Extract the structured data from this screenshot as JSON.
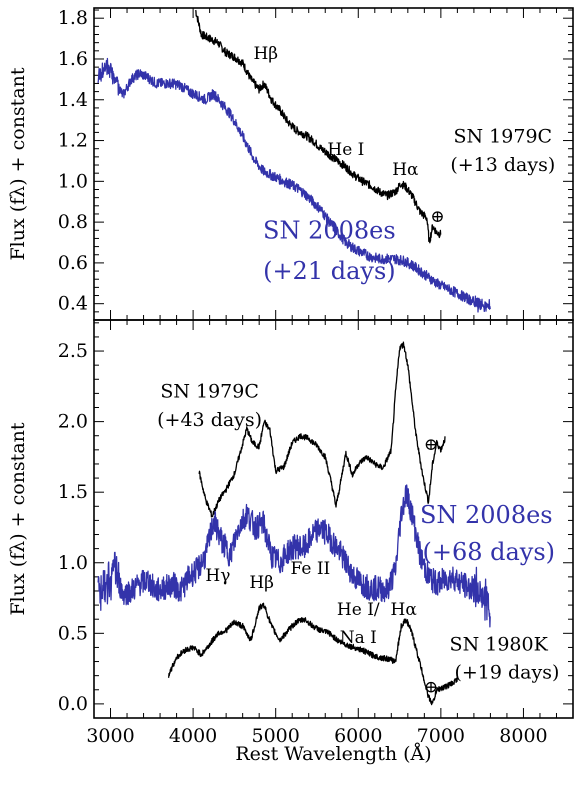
{
  "chart_data": [
    {
      "type": "line",
      "panel": "top",
      "ylabel": "Flux (fλ) + constant",
      "xlim": [
        2800,
        8600
      ],
      "ylim": [
        0.32,
        1.85
      ],
      "yticks": [
        {
          "value": 0.4,
          "label": "0.4"
        },
        {
          "value": 0.6,
          "label": "0.6"
        },
        {
          "value": 0.8,
          "label": "0.8"
        },
        {
          "value": 1.0,
          "label": "1.0"
        },
        {
          "value": 1.2,
          "label": "1.2"
        },
        {
          "value": 1.4,
          "label": "1.4"
        },
        {
          "value": 1.6,
          "label": "1.6"
        },
        {
          "value": 1.8,
          "label": "1.8"
        }
      ],
      "series": [
        {
          "name": "SN 1979C (+13 days)",
          "color": "#000000",
          "x": [
            4030,
            4100,
            4200,
            4300,
            4400,
            4500,
            4600,
            4700,
            4800,
            4860,
            4950,
            5050,
            5150,
            5250,
            5350,
            5450,
            5550,
            5650,
            5750,
            5850,
            5950,
            6050,
            6150,
            6250,
            6350,
            6450,
            6520,
            6580,
            6650,
            6750,
            6830,
            6860,
            6900,
            6950,
            7000
          ],
          "y": [
            1.84,
            1.72,
            1.7,
            1.68,
            1.63,
            1.61,
            1.58,
            1.5,
            1.45,
            1.48,
            1.4,
            1.35,
            1.29,
            1.25,
            1.23,
            1.2,
            1.16,
            1.13,
            1.1,
            1.07,
            1.03,
            1.0,
            0.98,
            0.95,
            0.93,
            0.95,
            0.99,
            0.97,
            0.93,
            0.85,
            0.82,
            0.7,
            0.78,
            0.75,
            0.74
          ]
        },
        {
          "name": "SN 2008es (+21 days)",
          "color": "#3333aa",
          "x": [
            2850,
            2950,
            3050,
            3150,
            3250,
            3350,
            3450,
            3550,
            3650,
            3750,
            3850,
            3950,
            4050,
            4150,
            4250,
            4350,
            4450,
            4550,
            4650,
            4750,
            4850,
            4950,
            5050,
            5150,
            5250,
            5350,
            5450,
            5550,
            5650,
            5750,
            5850,
            5950,
            6050,
            6150,
            6250,
            6350,
            6450,
            6550,
            6650,
            6750,
            6850,
            6950,
            7050,
            7150,
            7250,
            7350,
            7450,
            7550,
            7600
          ],
          "y": [
            1.5,
            1.57,
            1.51,
            1.42,
            1.5,
            1.53,
            1.51,
            1.48,
            1.48,
            1.48,
            1.47,
            1.44,
            1.42,
            1.4,
            1.43,
            1.38,
            1.33,
            1.26,
            1.18,
            1.1,
            1.05,
            1.03,
            1.01,
            0.99,
            0.97,
            0.94,
            0.9,
            0.86,
            0.8,
            0.75,
            0.7,
            0.67,
            0.65,
            0.63,
            0.62,
            0.62,
            0.62,
            0.61,
            0.59,
            0.56,
            0.53,
            0.5,
            0.48,
            0.46,
            0.44,
            0.42,
            0.4,
            0.38,
            0.39
          ]
        }
      ],
      "annotations": [
        {
          "text": "Hβ",
          "x": 4880,
          "y": 1.6,
          "color": "black"
        },
        {
          "text": "He I",
          "x": 5850,
          "y": 1.13,
          "color": "black"
        },
        {
          "text": "Hα",
          "x": 6570,
          "y": 1.03,
          "color": "black"
        },
        {
          "text": "⊕",
          "x": 6960,
          "y": 0.8,
          "color": "black"
        },
        {
          "text": "SN 1979C",
          "x": 7750,
          "y": 1.19,
          "color": "black"
        },
        {
          "text": "(+13 days)",
          "x": 7750,
          "y": 1.05,
          "color": "black"
        },
        {
          "text": "SN 2008es",
          "x": 5650,
          "y": 0.72,
          "color": "blue"
        },
        {
          "text": "(+21 days)",
          "x": 5650,
          "y": 0.52,
          "color": "blue"
        }
      ]
    },
    {
      "type": "line",
      "panel": "bottom",
      "xlabel": "Rest Wavelength (Å)",
      "ylabel": "Flux (fλ) + constant",
      "xlim": [
        2800,
        8600
      ],
      "ylim": [
        -0.1,
        2.72
      ],
      "xticks": [
        {
          "value": 3000,
          "label": "3000"
        },
        {
          "value": 4000,
          "label": "4000"
        },
        {
          "value": 5000,
          "label": "5000"
        },
        {
          "value": 6000,
          "label": "6000"
        },
        {
          "value": 7000,
          "label": "7000"
        },
        {
          "value": 8000,
          "label": "8000"
        }
      ],
      "yticks": [
        {
          "value": 0.0,
          "label": "0.0"
        },
        {
          "value": 0.5,
          "label": "0.5"
        },
        {
          "value": 1.0,
          "label": "1.0"
        },
        {
          "value": 1.5,
          "label": "1.5"
        },
        {
          "value": 2.0,
          "label": "2.0"
        },
        {
          "value": 2.5,
          "label": "2.5"
        }
      ],
      "series": [
        {
          "name": "SN 1979C (+43 days)",
          "color": "#000000",
          "x": [
            4070,
            4150,
            4230,
            4320,
            4400,
            4500,
            4580,
            4650,
            4720,
            4800,
            4860,
            4930,
            5000,
            5100,
            5200,
            5300,
            5400,
            5500,
            5600,
            5680,
            5730,
            5780,
            5850,
            5930,
            6000,
            6100,
            6200,
            6300,
            6400,
            6450,
            6500,
            6550,
            6600,
            6650,
            6700,
            6780,
            6850,
            6900,
            6950,
            7000,
            7050
          ],
          "y": [
            1.65,
            1.45,
            1.33,
            1.45,
            1.52,
            1.63,
            1.8,
            1.95,
            1.85,
            1.82,
            2.0,
            1.94,
            1.65,
            1.68,
            1.85,
            1.9,
            1.88,
            1.83,
            1.75,
            1.55,
            1.4,
            1.55,
            1.78,
            1.62,
            1.7,
            1.75,
            1.7,
            1.67,
            1.8,
            2.2,
            2.52,
            2.55,
            2.4,
            2.15,
            1.9,
            1.62,
            1.43,
            1.7,
            1.85,
            1.8,
            1.88
          ]
        },
        {
          "name": "SN 2008es (+68 days)",
          "color": "#3333aa",
          "x": [
            2850,
            2950,
            3050,
            3150,
            3250,
            3350,
            3450,
            3550,
            3650,
            3750,
            3850,
            3950,
            4050,
            4150,
            4250,
            4350,
            4450,
            4550,
            4650,
            4750,
            4850,
            4950,
            5050,
            5150,
            5250,
            5350,
            5450,
            5550,
            5650,
            5750,
            5850,
            5950,
            6050,
            6150,
            6250,
            6350,
            6450,
            6520,
            6580,
            6650,
            6750,
            6850,
            6950,
            7050,
            7150,
            7250,
            7350,
            7450,
            7550,
            7600
          ],
          "y": [
            0.8,
            0.85,
            0.95,
            0.78,
            0.8,
            0.85,
            0.88,
            0.8,
            0.82,
            0.85,
            0.8,
            0.9,
            0.95,
            1.05,
            1.3,
            1.15,
            1.05,
            1.25,
            1.35,
            1.25,
            1.28,
            1.05,
            1.0,
            1.08,
            1.12,
            1.1,
            1.2,
            1.25,
            1.18,
            1.1,
            1.0,
            0.9,
            0.85,
            0.82,
            0.82,
            0.8,
            0.95,
            1.35,
            1.5,
            1.35,
            1.05,
            0.9,
            0.85,
            0.88,
            0.9,
            0.85,
            0.82,
            0.8,
            0.75,
            0.6
          ]
        },
        {
          "name": "SN 1980K (+19 days)",
          "color": "#000000",
          "x": [
            3700,
            3800,
            3900,
            4000,
            4100,
            4200,
            4300,
            4400,
            4500,
            4600,
            4700,
            4800,
            4860,
            4950,
            5050,
            5150,
            5250,
            5350,
            5450,
            5550,
            5650,
            5750,
            5850,
            5950,
            6050,
            6150,
            6250,
            6350,
            6450,
            6520,
            6580,
            6650,
            6750,
            6850,
            6900,
            6950,
            7050,
            7150,
            7200
          ],
          "y": [
            0.2,
            0.33,
            0.38,
            0.4,
            0.35,
            0.42,
            0.5,
            0.52,
            0.58,
            0.55,
            0.45,
            0.68,
            0.7,
            0.55,
            0.45,
            0.52,
            0.58,
            0.6,
            0.55,
            0.52,
            0.5,
            0.45,
            0.42,
            0.4,
            0.38,
            0.35,
            0.33,
            0.32,
            0.3,
            0.55,
            0.6,
            0.5,
            0.28,
            0.05,
            0.0,
            0.1,
            0.12,
            0.15,
            0.18
          ]
        }
      ],
      "annotations": [
        {
          "text": "SN 1979C",
          "x": 4200,
          "y": 2.17,
          "color": "black"
        },
        {
          "text": "(+43 days)",
          "x": 4200,
          "y": 1.97,
          "color": "black"
        },
        {
          "text": "⊕",
          "x": 6880,
          "y": 1.8,
          "color": "black"
        },
        {
          "text": "SN 2008es",
          "x": 7550,
          "y": 1.28,
          "color": "blue"
        },
        {
          "text": "(+68 days)",
          "x": 7580,
          "y": 1.02,
          "color": "blue"
        },
        {
          "text": "Hγ",
          "x": 4300,
          "y": 0.87,
          "color": "black"
        },
        {
          "text": "Hβ",
          "x": 4830,
          "y": 0.82,
          "color": "black"
        },
        {
          "text": "Fe II",
          "x": 5420,
          "y": 0.92,
          "color": "black"
        },
        {
          "text": "He I/",
          "x": 6000,
          "y": 0.63,
          "color": "black"
        },
        {
          "text": "Na I",
          "x": 6000,
          "y": 0.43,
          "color": "black"
        },
        {
          "text": "Hα",
          "x": 6550,
          "y": 0.63,
          "color": "black"
        },
        {
          "text": "SN 1980K",
          "x": 7700,
          "y": 0.38,
          "color": "black"
        },
        {
          "text": "(+19 days)",
          "x": 7800,
          "y": 0.18,
          "color": "black"
        },
        {
          "text": "⊕",
          "x": 6880,
          "y": 0.08,
          "color": "black"
        }
      ]
    }
  ]
}
